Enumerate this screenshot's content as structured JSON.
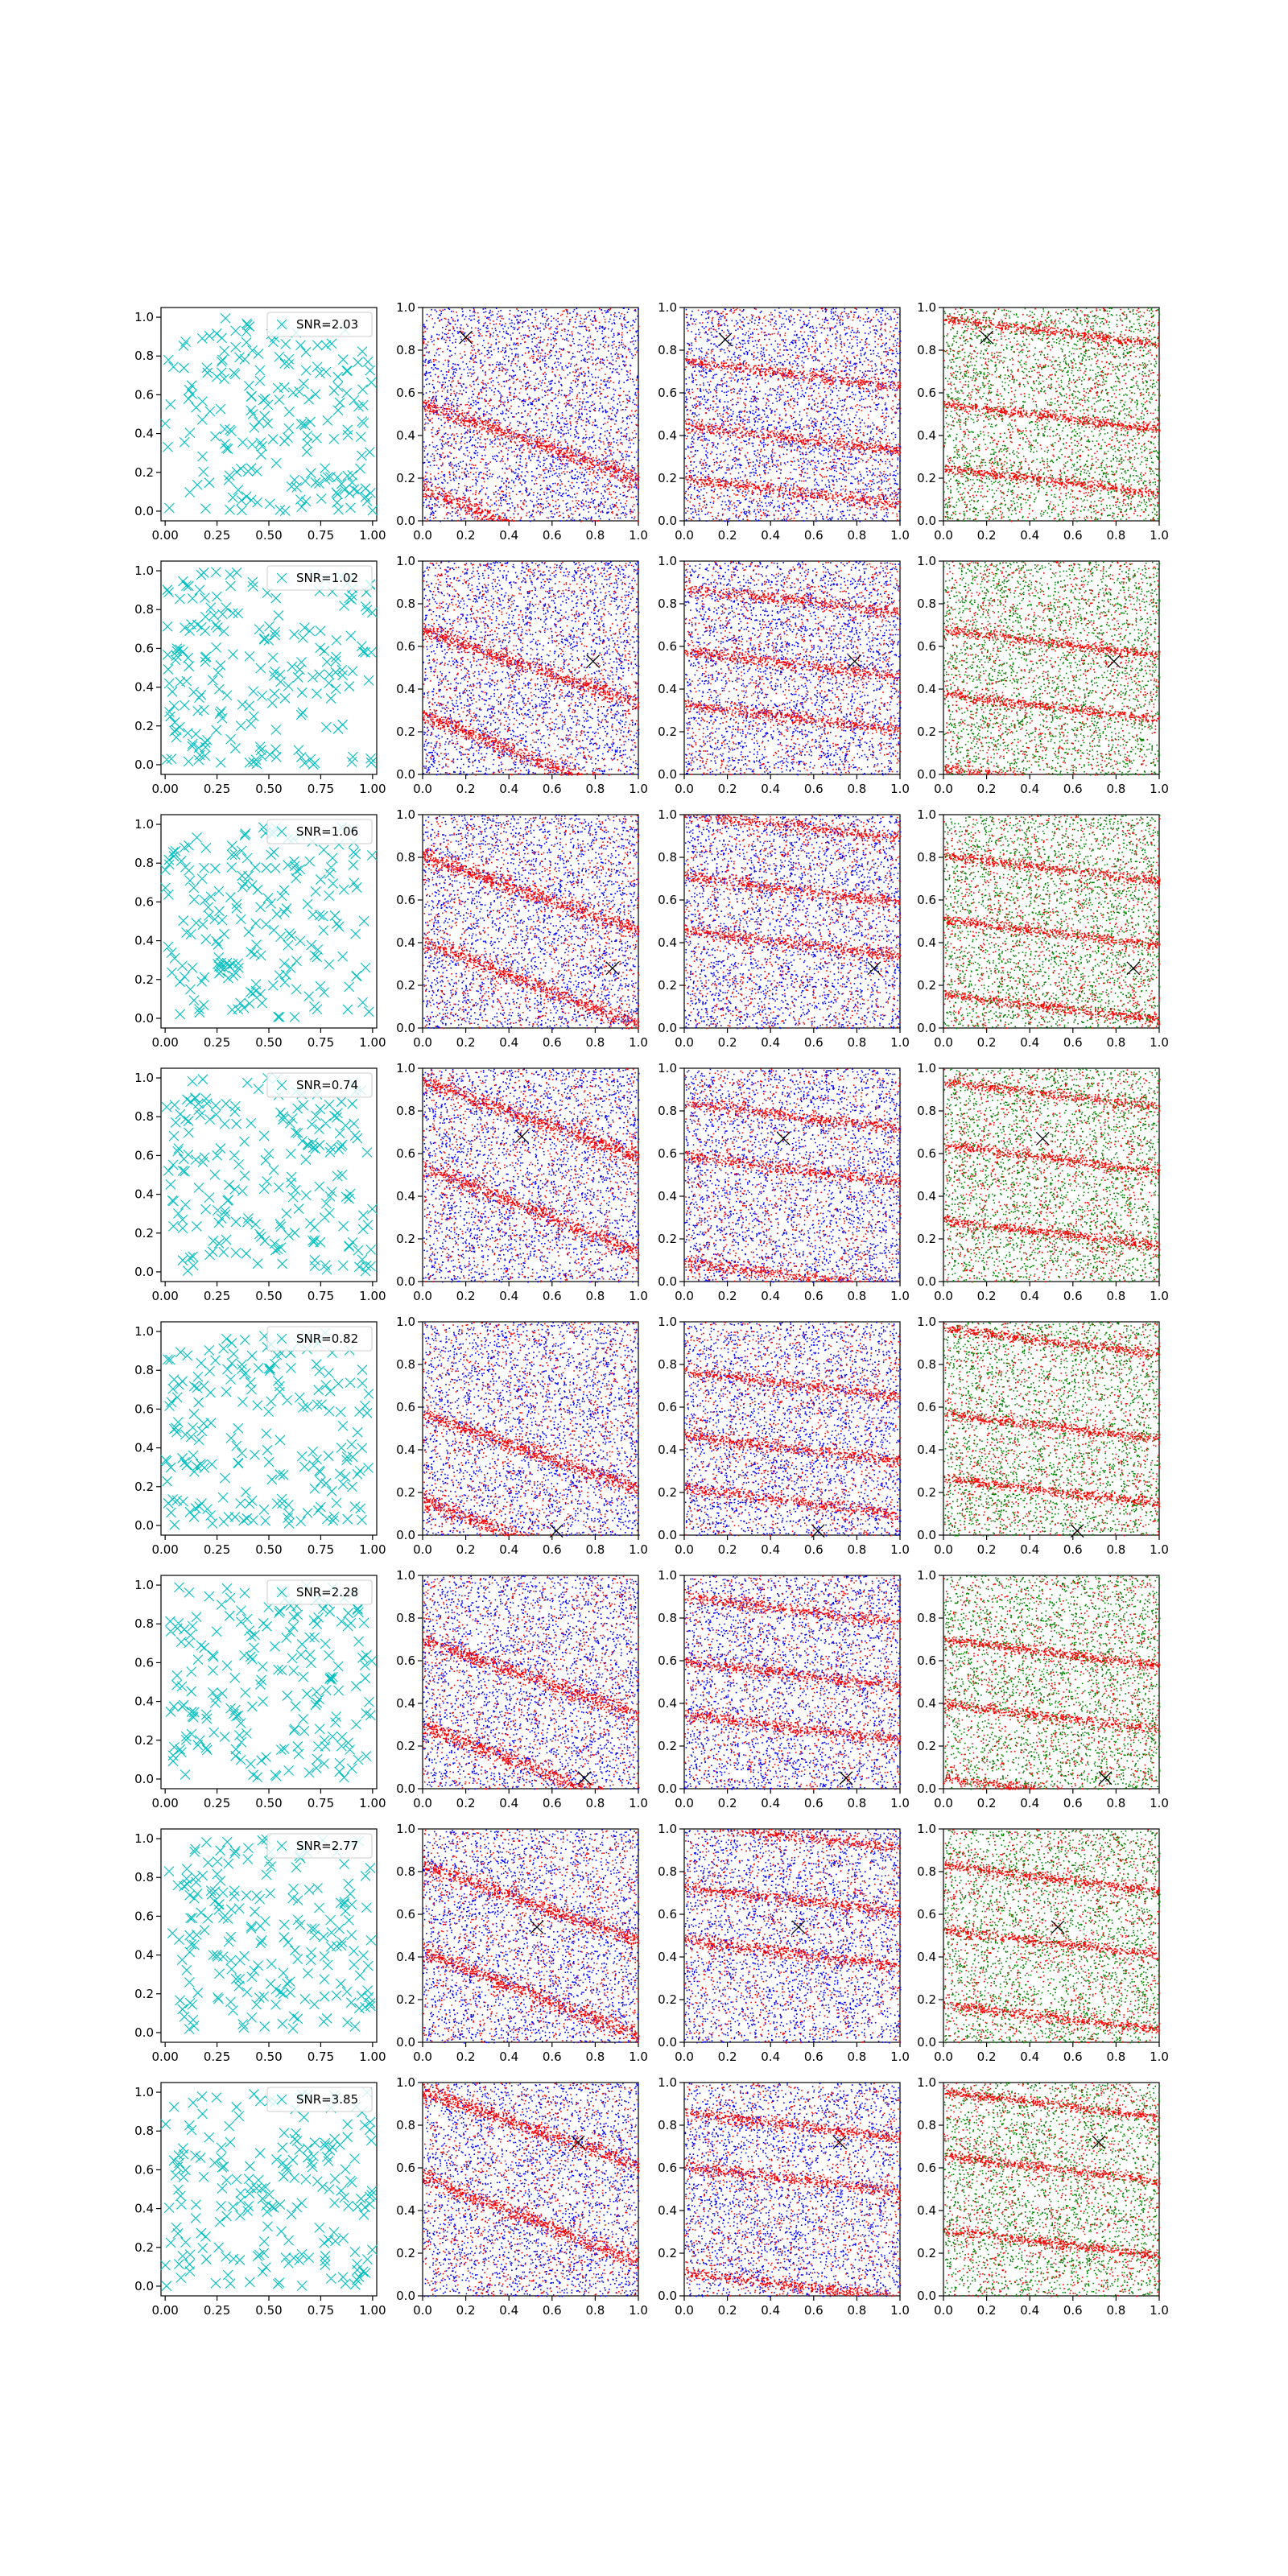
{
  "colors": {
    "cyan_marker": "#00bfbf",
    "red_points": "#ff0000",
    "blue_points": "#0000ff",
    "green_points": "#008000",
    "true_position_marker": "#000000",
    "axes": "#000000"
  },
  "chart_data": {
    "type": "scatter",
    "layout": "8 rows x 4 columns",
    "columns": [
      "random positions",
      "red/blue scatter",
      "red/blue scatter",
      "red/green scatter"
    ],
    "first_column": {
      "marker": "x",
      "marker_count_per_panel_approx": 200,
      "xlim": [
        -0.02,
        1.02
      ],
      "ylim": [
        -0.05,
        1.05
      ],
      "xticks": [
        "0.00",
        "0.25",
        "0.50",
        "0.75",
        "1.00"
      ],
      "yticks": [
        "0.0",
        "0.2",
        "0.4",
        "0.6",
        "0.8",
        "1.0"
      ],
      "legend_position": "top-right"
    },
    "other_columns": {
      "xlim": [
        0,
        1
      ],
      "ylim": [
        0,
        1
      ],
      "xticks": [
        "0.0",
        "0.2",
        "0.4",
        "0.6",
        "0.8",
        "1.0"
      ],
      "yticks": [
        "0.0",
        "0.2",
        "0.4",
        "0.6",
        "0.8",
        "1.0"
      ]
    },
    "rows": [
      {
        "legend": "SNR=2.03",
        "marker_x": [
          0.2,
          0.19,
          0.2
        ],
        "marker_y": [
          0.86,
          0.85,
          0.86
        ]
      },
      {
        "legend": "SNR=1.02",
        "marker_x": [
          0.79,
          0.79,
          0.79
        ],
        "marker_y": [
          0.53,
          0.53,
          0.53
        ]
      },
      {
        "legend": "SNR=1.06",
        "marker_x": [
          0.88,
          0.88,
          0.88
        ],
        "marker_y": [
          0.28,
          0.28,
          0.28
        ]
      },
      {
        "legend": "SNR=0.74",
        "marker_x": [
          0.46,
          0.46,
          0.46
        ],
        "marker_y": [
          0.68,
          0.67,
          0.67
        ]
      },
      {
        "legend": "SNR=0.82",
        "marker_x": [
          0.62,
          0.62,
          0.62
        ],
        "marker_y": [
          0.02,
          0.02,
          0.02
        ]
      },
      {
        "legend": "SNR=2.28",
        "marker_x": [
          0.75,
          0.75,
          0.75
        ],
        "marker_y": [
          0.05,
          0.05,
          0.05
        ]
      },
      {
        "legend": "SNR=2.77",
        "marker_x": [
          0.53,
          0.53,
          0.53
        ],
        "marker_y": [
          0.54,
          0.54,
          0.54
        ]
      },
      {
        "legend": "SNR=3.85",
        "marker_x": [
          0.72,
          0.72,
          0.72
        ],
        "marker_y": [
          0.72,
          0.72,
          0.72
        ]
      }
    ]
  }
}
